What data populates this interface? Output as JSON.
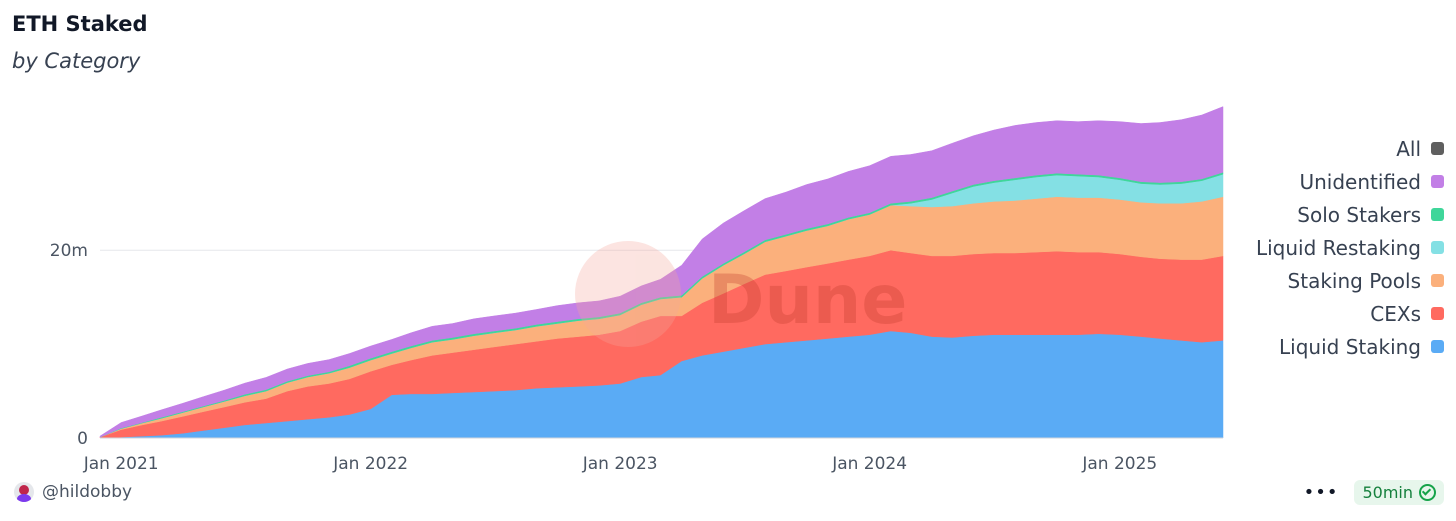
{
  "page": {
    "author": "@hildobby",
    "refresh": "50min",
    "watermark": "Dune"
  },
  "chart_data": {
    "type": "area",
    "stacked": true,
    "title": "ETH Staked",
    "subtitle": "by Category",
    "x": [
      "2020-12-01",
      "2021-01-01",
      "2021-02-01",
      "2021-03-01",
      "2021-04-01",
      "2021-05-01",
      "2021-06-01",
      "2021-07-01",
      "2021-08-01",
      "2021-09-01",
      "2021-10-01",
      "2021-11-01",
      "2021-12-01",
      "2022-01-01",
      "2022-02-01",
      "2022-03-01",
      "2022-04-01",
      "2022-05-01",
      "2022-06-01",
      "2022-07-01",
      "2022-08-01",
      "2022-09-01",
      "2022-10-01",
      "2022-11-01",
      "2022-12-01",
      "2023-01-01",
      "2023-02-01",
      "2023-03-01",
      "2023-04-01",
      "2023-05-01",
      "2023-06-01",
      "2023-07-01",
      "2023-08-01",
      "2023-09-01",
      "2023-10-01",
      "2023-11-01",
      "2023-12-01",
      "2024-01-01",
      "2024-02-01",
      "2024-03-01",
      "2024-04-01",
      "2024-05-01",
      "2024-06-01",
      "2024-07-01",
      "2024-08-01",
      "2024-09-01",
      "2024-10-01",
      "2024-11-01",
      "2024-12-01",
      "2025-01-01",
      "2025-02-01",
      "2025-03-01",
      "2025-04-01",
      "2025-05-01",
      "2025-06-01"
    ],
    "series": [
      {
        "name": "Liquid Staking",
        "color": "#5aabf5",
        "values": [
          0,
          0.1,
          0.2,
          0.3,
          0.5,
          0.8,
          1.1,
          1.4,
          1.6,
          1.8,
          2,
          2.2,
          2.5,
          3.1,
          4.6,
          4.7,
          4.7,
          4.8,
          4.9,
          5.0,
          5.1,
          5.3,
          5.4,
          5.5,
          5.6,
          5.8,
          6.5,
          6.7,
          8.2,
          8.8,
          9.2,
          9.6,
          10.0,
          10.2,
          10.4,
          10.6,
          10.8,
          11.0,
          11.4,
          11.2,
          10.8,
          10.7,
          10.9,
          11.0,
          11.0,
          11.0,
          11.0,
          11.0,
          11.1,
          11.0,
          10.8,
          10.6,
          10.4,
          10.2,
          10.4
        ]
      },
      {
        "name": "CEXs",
        "color": "#ff6a60",
        "values": [
          0.1,
          0.8,
          1.2,
          1.5,
          1.8,
          2,
          2.2,
          2.4,
          2.6,
          3.2,
          3.5,
          3.6,
          3.8,
          4.0,
          3.2,
          3.6,
          4.1,
          4.3,
          4.5,
          4.7,
          4.9,
          5.0,
          5.2,
          5.3,
          5.4,
          5.6,
          5.9,
          6.3,
          4.8,
          5.6,
          6.2,
          6.8,
          7.4,
          7.6,
          7.8,
          8.0,
          8.2,
          8.4,
          8.6,
          8.5,
          8.6,
          8.7,
          8.7,
          8.7,
          8.7,
          8.8,
          8.9,
          8.8,
          8.7,
          8.6,
          8.5,
          8.5,
          8.6,
          8.8,
          9.0
        ]
      },
      {
        "name": "Staking Pools",
        "color": "#fbb07c",
        "values": [
          0,
          0.1,
          0.2,
          0.3,
          0.4,
          0.5,
          0.6,
          0.7,
          0.8,
          0.9,
          1.0,
          1.1,
          1.2,
          1.2,
          1.2,
          1.3,
          1.4,
          1.4,
          1.5,
          1.5,
          1.5,
          1.6,
          1.6,
          1.7,
          1.7,
          1.7,
          1.8,
          1.8,
          2.0,
          2.6,
          3.0,
          3.2,
          3.5,
          3.7,
          3.9,
          4.0,
          4.3,
          4.4,
          4.8,
          5.0,
          5.2,
          5.3,
          5.4,
          5.5,
          5.6,
          5.7,
          5.8,
          5.8,
          5.8,
          5.8,
          5.8,
          5.9,
          6.0,
          6.2,
          6.3
        ]
      },
      {
        "name": "Liquid Restaking",
        "color": "#84e0e4",
        "values": [
          0,
          0,
          0,
          0,
          0,
          0,
          0,
          0,
          0,
          0,
          0,
          0,
          0,
          0,
          0,
          0,
          0,
          0,
          0,
          0,
          0,
          0,
          0,
          0,
          0,
          0,
          0,
          0,
          0,
          0,
          0,
          0,
          0,
          0,
          0,
          0,
          0,
          0,
          0,
          0.3,
          0.8,
          1.4,
          1.8,
          2.0,
          2.2,
          2.3,
          2.3,
          2.3,
          2.2,
          2.1,
          2.0,
          2.0,
          2.1,
          2.2,
          2.4
        ]
      },
      {
        "name": "Solo Stakers",
        "color": "#3fd69a",
        "values": [
          0,
          0.05,
          0.05,
          0.1,
          0.1,
          0.1,
          0.1,
          0.15,
          0.15,
          0.15,
          0.15,
          0.15,
          0.2,
          0.2,
          0.2,
          0.2,
          0.2,
          0.2,
          0.2,
          0.2,
          0.2,
          0.2,
          0.2,
          0.2,
          0.2,
          0.2,
          0.2,
          0.2,
          0.2,
          0.2,
          0.2,
          0.2,
          0.2,
          0.2,
          0.2,
          0.2,
          0.2,
          0.2,
          0.2,
          0.2,
          0.2,
          0.2,
          0.2,
          0.2,
          0.2,
          0.2,
          0.2,
          0.2,
          0.2,
          0.2,
          0.2,
          0.2,
          0.2,
          0.2,
          0.2
        ]
      },
      {
        "name": "Unidentified",
        "color": "#c27fe6",
        "values": [
          0.1,
          0.6,
          0.7,
          0.8,
          0.9,
          1.0,
          1.1,
          1.2,
          1.3,
          1.3,
          1.3,
          1.3,
          1.3,
          1.3,
          1.3,
          1.4,
          1.5,
          1.5,
          1.6,
          1.6,
          1.6,
          1.6,
          1.7,
          1.7,
          1.7,
          1.8,
          1.8,
          1.9,
          3.2,
          4.0,
          4.3,
          4.4,
          4.4,
          4.5,
          4.7,
          4.8,
          4.9,
          5.0,
          5.0,
          5.0,
          5.0,
          5.1,
          5.2,
          5.4,
          5.6,
          5.6,
          5.6,
          5.6,
          5.8,
          6.0,
          6.2,
          6.4,
          6.6,
          6.8,
          7.0
        ]
      }
    ],
    "legend": [
      "All",
      "Unidentified",
      "Solo Stakers",
      "Liquid Restaking",
      "Staking Pools",
      "CEXs",
      "Liquid Staking"
    ],
    "legend_colors": [
      "#5f5f5f",
      "#c27fe6",
      "#3fd69a",
      "#84e0e4",
      "#fbb07c",
      "#ff6a60",
      "#5aabf5"
    ],
    "legend_position": "right",
    "xticks": [
      "Jan 2021",
      "Jan 2022",
      "Jan 2023",
      "Jan 2024",
      "Jan 2025"
    ],
    "yticks": [
      "0",
      "20m"
    ],
    "yticks_values": [
      0,
      20
    ],
    "ylim": [
      0,
      36
    ],
    "grid": true
  }
}
